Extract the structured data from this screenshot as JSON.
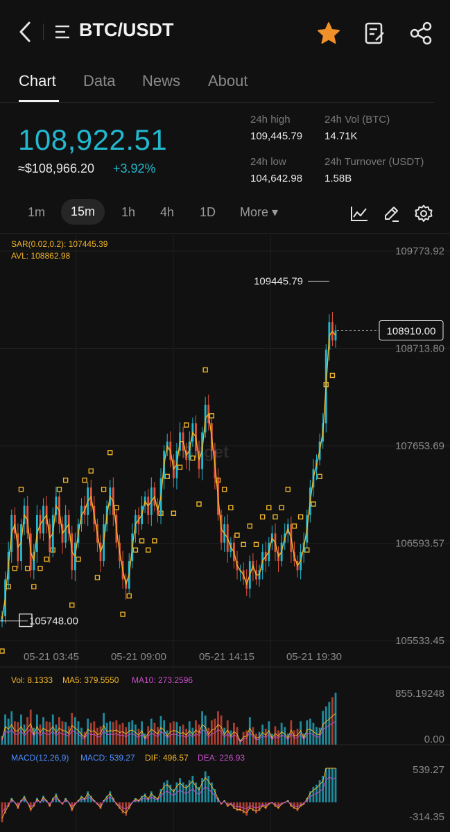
{
  "header": {
    "pair": "BTC/USDT",
    "icons": [
      "back-chevron-icon",
      "menu-icon",
      "star-icon",
      "note-edit-icon",
      "share-icon"
    ],
    "star_color": "#f0902a"
  },
  "tabs": [
    {
      "label": "Chart",
      "active": true
    },
    {
      "label": "Data",
      "active": false
    },
    {
      "label": "News",
      "active": false
    },
    {
      "label": "About",
      "active": false
    }
  ],
  "ticker": {
    "price": "108,922.51",
    "approx": "≈$108,966.20",
    "change": "+3.92%",
    "high_label": "24h high",
    "high": "109,445.79",
    "vol_label": "24h Vol (BTC)",
    "vol": "14.71K",
    "low_label": "24h low",
    "low": "104,642.98",
    "turnover_label": "24h Turnover (USDT)",
    "turnover": "1.58B"
  },
  "intervals": [
    {
      "label": "1m",
      "active": false
    },
    {
      "label": "15m",
      "active": true
    },
    {
      "label": "1h",
      "active": false
    },
    {
      "label": "4h",
      "active": false
    },
    {
      "label": "1D",
      "active": false
    },
    {
      "label": "More ▾",
      "active": false
    }
  ],
  "tools": [
    "line-chart-icon",
    "draw-pencil-icon",
    "settings-gear-icon"
  ],
  "colors": {
    "up": "#22b8cf",
    "down": "#e5533d",
    "sar": "#f0b429",
    "avl": "#f0b429",
    "ma5": "#f0b429",
    "ma10": "#c64fc6",
    "macd_label": "#4e8cff",
    "dif": "#f0b429",
    "dea": "#c64fc6"
  },
  "chart_data": {
    "type": "candlestick",
    "watermark": "Bitget",
    "indicators": {
      "sar": "SAR(0.02,0.2): 107445.39",
      "avl": "AVL: 108862.98"
    },
    "y_ticks": [
      "109773.92",
      "108713.80",
      "107653.69",
      "106593.57",
      "105533.45"
    ],
    "y_tick_values": [
      109773.92,
      108713.8,
      107653.69,
      106593.57,
      105533.45
    ],
    "ylim": [
      105533.45,
      109773.92
    ],
    "x_ticks": [
      "05-21 03:45",
      "05-21 09:00",
      "05-21 14:15",
      "05-21 19:30"
    ],
    "high_marker": "109445.79",
    "low_marker": "105748.00",
    "current_price": "108910.00",
    "high_value": 109445.79,
    "low_value": 105748.0,
    "current_value": 108910.0,
    "close_path": [
      105800,
      106200,
      106500,
      106900,
      106700,
      106400,
      106800,
      107000,
      106700,
      106300,
      106500,
      106900,
      106700,
      107000,
      106800,
      106500,
      106900,
      107100,
      106800,
      106600,
      106900,
      106700,
      106300,
      106600,
      106800,
      107000,
      106900,
      107200,
      107000,
      106800,
      106600,
      106400,
      106800,
      107000,
      107200,
      106900,
      106600,
      106400,
      106200,
      106100,
      106400,
      106700,
      106900,
      106800,
      107000,
      107100,
      106900,
      107200,
      107000,
      106900,
      107300,
      107600,
      107700,
      107500,
      107300,
      107600,
      107800,
      107600,
      107500,
      107700,
      107900,
      107600,
      107400,
      107800,
      108100,
      107900,
      107600,
      107300,
      106900,
      106600,
      106800,
      106500,
      106600,
      106400,
      106300,
      106300,
      106200,
      106100,
      106400,
      106300,
      106200,
      106300,
      106500,
      106400,
      106600,
      106700,
      106500,
      106400,
      106600,
      106700,
      106800,
      106500,
      106400,
      106300,
      106500,
      106600,
      106900,
      107200,
      107400,
      107500,
      107700,
      107900,
      108700,
      109000,
      108800,
      108910
    ],
    "volume": {
      "label_vol": "Vol: 8.1333",
      "label_ma5": "MA5: 379.5550",
      "label_ma10": "MA10: 273.2596",
      "y_max_label": "855.19248",
      "y_min_label": "0.00",
      "ylim": [
        0,
        855.19248
      ]
    },
    "macd": {
      "label": "MACD(12,26,9)",
      "macd": "MACD: 539.27",
      "dif": "DIF: 496.57",
      "dea": "DEA: 226.93",
      "y_max_label": "539.27",
      "y_min_label": "-314.35",
      "ylim": [
        -314.35,
        539.27
      ]
    }
  }
}
